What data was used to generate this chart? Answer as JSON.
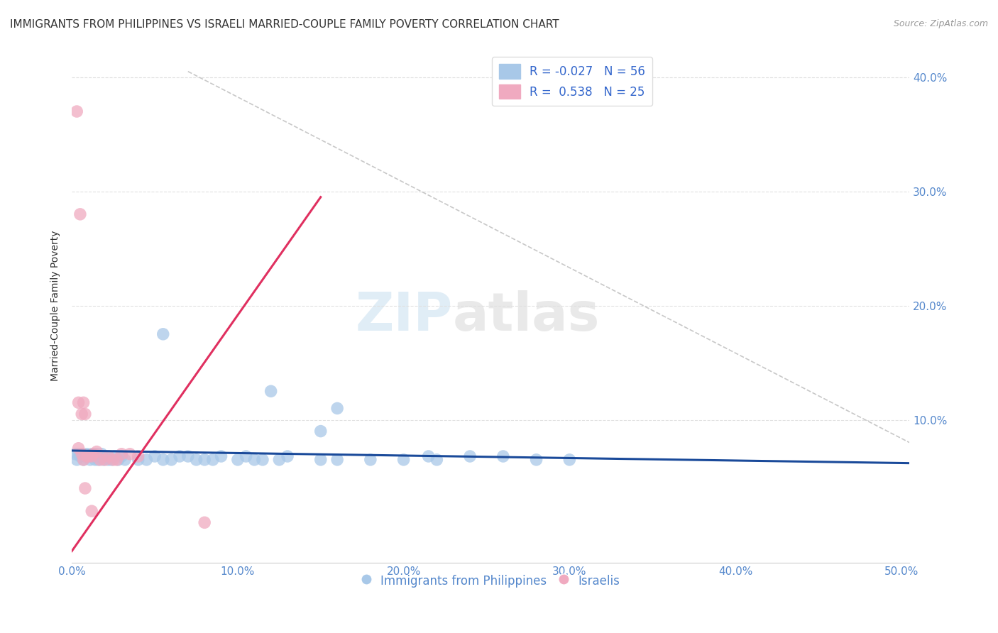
{
  "title": "IMMIGRANTS FROM PHILIPPINES VS ISRAELI MARRIED-COUPLE FAMILY POVERTY CORRELATION CHART",
  "source": "Source: ZipAtlas.com",
  "ylabel": "Married-Couple Family Poverty",
  "xlim": [
    0.0,
    0.505
  ],
  "ylim": [
    -0.025,
    0.425
  ],
  "ytick_vals": [
    0.1,
    0.2,
    0.3,
    0.4
  ],
  "ytick_labels": [
    "10.0%",
    "20.0%",
    "30.0%",
    "40.0%"
  ],
  "xtick_vals": [
    0.0,
    0.1,
    0.2,
    0.3,
    0.4,
    0.5
  ],
  "xtick_labels": [
    "0.0%",
    "10.0%",
    "20.0%",
    "30.0%",
    "40.0%",
    "50.0%"
  ],
  "blue_R": "-0.027",
  "blue_N": "56",
  "pink_R": "0.538",
  "pink_N": "25",
  "legend_label_blue": "Immigrants from Philippines",
  "legend_label_pink": "Israelis",
  "watermark_zip": "ZIP",
  "watermark_atlas": "atlas",
  "blue_scatter": [
    [
      0.002,
      0.07
    ],
    [
      0.003,
      0.065
    ],
    [
      0.004,
      0.07
    ],
    [
      0.005,
      0.068
    ],
    [
      0.006,
      0.07
    ],
    [
      0.007,
      0.065
    ],
    [
      0.008,
      0.068
    ],
    [
      0.009,
      0.07
    ],
    [
      0.01,
      0.068
    ],
    [
      0.011,
      0.065
    ],
    [
      0.012,
      0.07
    ],
    [
      0.013,
      0.068
    ],
    [
      0.014,
      0.065
    ],
    [
      0.015,
      0.07
    ],
    [
      0.016,
      0.065
    ],
    [
      0.017,
      0.068
    ],
    [
      0.018,
      0.07
    ],
    [
      0.019,
      0.065
    ],
    [
      0.02,
      0.068
    ],
    [
      0.022,
      0.065
    ],
    [
      0.024,
      0.065
    ],
    [
      0.026,
      0.068
    ],
    [
      0.028,
      0.065
    ],
    [
      0.03,
      0.068
    ],
    [
      0.032,
      0.065
    ],
    [
      0.04,
      0.065
    ],
    [
      0.045,
      0.065
    ],
    [
      0.05,
      0.068
    ],
    [
      0.055,
      0.065
    ],
    [
      0.06,
      0.065
    ],
    [
      0.065,
      0.068
    ],
    [
      0.07,
      0.068
    ],
    [
      0.075,
      0.065
    ],
    [
      0.08,
      0.065
    ],
    [
      0.085,
      0.065
    ],
    [
      0.09,
      0.068
    ],
    [
      0.1,
      0.065
    ],
    [
      0.105,
      0.068
    ],
    [
      0.11,
      0.065
    ],
    [
      0.115,
      0.065
    ],
    [
      0.125,
      0.065
    ],
    [
      0.13,
      0.068
    ],
    [
      0.15,
      0.065
    ],
    [
      0.16,
      0.065
    ],
    [
      0.18,
      0.065
    ],
    [
      0.2,
      0.065
    ],
    [
      0.215,
      0.068
    ],
    [
      0.22,
      0.065
    ],
    [
      0.24,
      0.068
    ],
    [
      0.26,
      0.068
    ],
    [
      0.28,
      0.065
    ],
    [
      0.3,
      0.065
    ],
    [
      0.055,
      0.175
    ],
    [
      0.12,
      0.125
    ],
    [
      0.15,
      0.09
    ],
    [
      0.16,
      0.11
    ]
  ],
  "pink_scatter": [
    [
      0.003,
      0.37
    ],
    [
      0.005,
      0.28
    ],
    [
      0.004,
      0.115
    ],
    [
      0.006,
      0.105
    ],
    [
      0.007,
      0.115
    ],
    [
      0.008,
      0.105
    ],
    [
      0.004,
      0.075
    ],
    [
      0.006,
      0.07
    ],
    [
      0.007,
      0.065
    ],
    [
      0.009,
      0.068
    ],
    [
      0.01,
      0.068
    ],
    [
      0.012,
      0.068
    ],
    [
      0.013,
      0.07
    ],
    [
      0.015,
      0.072
    ],
    [
      0.017,
      0.065
    ],
    [
      0.02,
      0.065
    ],
    [
      0.022,
      0.068
    ],
    [
      0.025,
      0.065
    ],
    [
      0.027,
      0.065
    ],
    [
      0.03,
      0.07
    ],
    [
      0.035,
      0.07
    ],
    [
      0.04,
      0.068
    ],
    [
      0.008,
      0.04
    ],
    [
      0.012,
      0.02
    ],
    [
      0.08,
      0.01
    ]
  ],
  "blue_line_x": [
    0.0,
    0.505
  ],
  "blue_line_y": [
    0.073,
    0.062
  ],
  "pink_line_x": [
    0.0,
    0.15
  ],
  "pink_line_y": [
    -0.015,
    0.295
  ],
  "dashed_line_x": [
    0.07,
    0.505
  ],
  "dashed_line_y": [
    0.405,
    0.08
  ],
  "bg_color": "#ffffff",
  "blue_color": "#a8c8e8",
  "pink_color": "#f0aac0",
  "blue_line_color": "#1a4a9a",
  "pink_line_color": "#e03060",
  "dashed_line_color": "#c8c8c8",
  "grid_color": "#e0e0e0",
  "title_fontsize": 11,
  "axis_label_fontsize": 10,
  "tick_fontsize": 11,
  "scatter_size": 160
}
